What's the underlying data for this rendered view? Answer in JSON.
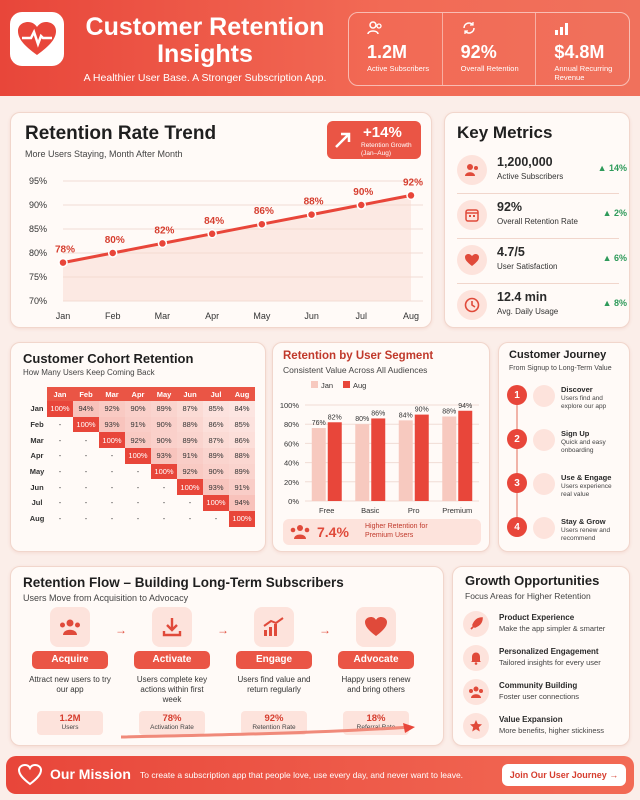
{
  "header": {
    "title": "Customer Retention Insights",
    "subtitle": "A Healthier User Base. A Stronger Subscription App.",
    "stats": [
      {
        "icon": "users-icon",
        "value": "1.2M",
        "label": "Active Subscribers"
      },
      {
        "icon": "refresh-icon",
        "value": "92%",
        "label": "Overall Retention"
      },
      {
        "icon": "bar-chart-icon",
        "value": "$4.8M",
        "label": "Annual Recurring Revenue"
      }
    ]
  },
  "trend": {
    "title": "Retention Rate Trend",
    "subtitle": "More Users Staying, Month After Month",
    "badge_value": "+14%",
    "badge_label": "Retention Growth (Jan–Aug)"
  },
  "chart_data": [
    {
      "type": "line",
      "title": "Retention Rate Trend",
      "x": [
        "Jan",
        "Feb",
        "Mar",
        "Apr",
        "May",
        "Jun",
        "Jul",
        "Aug"
      ],
      "series": [
        {
          "values": [
            78,
            80,
            82,
            84,
            86,
            88,
            90,
            92
          ]
        }
      ],
      "data_labels": [
        "78%",
        "80%",
        "82%",
        "84%",
        "86%",
        "88%",
        "90%",
        "92%"
      ],
      "yticks": [
        "70%",
        "75%",
        "80%",
        "85%",
        "90%",
        "95%"
      ],
      "ylim": [
        70,
        95
      ],
      "grid": true
    },
    {
      "type": "bar",
      "title": "Retention by User Segment",
      "categories": [
        "Free",
        "Basic",
        "Pro",
        "Premium"
      ],
      "series": [
        {
          "name": "Jan",
          "values": [
            76,
            80,
            84,
            88
          ]
        },
        {
          "name": "Aug",
          "values": [
            82,
            86,
            90,
            94
          ]
        }
      ],
      "yticks": [
        "0%",
        "20%",
        "40%",
        "60%",
        "80%",
        "100%"
      ],
      "ylim": [
        0,
        100
      ],
      "legend": "top-left"
    },
    {
      "type": "heatmap",
      "title": "Customer Cohort Retention",
      "columns": [
        "Jan",
        "Feb",
        "Mar",
        "Apr",
        "May",
        "Jun",
        "Jul",
        "Aug"
      ],
      "rows": [
        {
          "label": "Jan",
          "cells": [
            "100%",
            "94%",
            "92%",
            "90%",
            "89%",
            "87%",
            "85%",
            "84%"
          ]
        },
        {
          "label": "Feb",
          "cells": [
            "-",
            "100%",
            "93%",
            "91%",
            "90%",
            "88%",
            "86%",
            "85%"
          ]
        },
        {
          "label": "Mar",
          "cells": [
            "-",
            "-",
            "100%",
            "92%",
            "90%",
            "89%",
            "87%",
            "86%"
          ]
        },
        {
          "label": "Apr",
          "cells": [
            "-",
            "-",
            "-",
            "100%",
            "93%",
            "91%",
            "89%",
            "88%"
          ]
        },
        {
          "label": "May",
          "cells": [
            "-",
            "-",
            "-",
            "-",
            "100%",
            "92%",
            "90%",
            "89%"
          ]
        },
        {
          "label": "Jun",
          "cells": [
            "-",
            "-",
            "-",
            "-",
            "-",
            "100%",
            "93%",
            "91%"
          ]
        },
        {
          "label": "Jul",
          "cells": [
            "-",
            "-",
            "-",
            "-",
            "-",
            "-",
            "100%",
            "94%"
          ]
        },
        {
          "label": "Aug",
          "cells": [
            "-",
            "-",
            "-",
            "-",
            "-",
            "-",
            "-",
            "100%"
          ]
        }
      ]
    }
  ],
  "key_metrics": {
    "title": "Key Metrics",
    "items": [
      {
        "icon": "users-icon",
        "value": "1,200,000",
        "label": "Active Subscribers",
        "delta": "▲ 14%"
      },
      {
        "icon": "calendar-icon",
        "value": "92%",
        "label": "Overall Retention Rate",
        "delta": "▲ 2%"
      },
      {
        "icon": "heart-icon",
        "value": "4.7/5",
        "label": "User Satisfaction",
        "delta": "▲ 6%"
      },
      {
        "icon": "clock-icon",
        "value": "12.4 min",
        "label": "Avg. Daily Usage",
        "delta": "▲ 8%"
      }
    ]
  },
  "cohort": {
    "title": "Customer Cohort Retention",
    "subtitle": "How Many Users Keep Coming Back"
  },
  "segment": {
    "title": "Retention by User Segment",
    "subtitle": "Consistent Value Across All Audiences",
    "legend": [
      "Jan",
      "Aug"
    ],
    "bar_labels_jan": [
      "76%",
      "80%",
      "84%",
      "88%"
    ],
    "bar_labels_aug": [
      "82%",
      "86%",
      "90%",
      "94%"
    ],
    "callout_value": "7.4%",
    "callout_text": "Higher Retention for Premium Users"
  },
  "journey": {
    "title": "Customer Journey",
    "subtitle": "From Signup to Long-Term Value",
    "steps": [
      {
        "num": "1",
        "title": "Discover",
        "desc": "Users find and explore our app"
      },
      {
        "num": "2",
        "title": "Sign Up",
        "desc": "Quick and easy onboarding"
      },
      {
        "num": "3",
        "title": "Use & Engage",
        "desc": "Users experience real value"
      },
      {
        "num": "4",
        "title": "Stay & Grow",
        "desc": "Users renew and recommend"
      }
    ]
  },
  "flow": {
    "title": "Retention Flow – Building Long-Term Subscribers",
    "subtitle": "Users Move from Acquisition to Advocacy",
    "steps": [
      {
        "icon": "users-icon",
        "label": "Acquire",
        "desc": "Attract new users to try our app",
        "metric": "1.2M",
        "metric_label": "Users"
      },
      {
        "icon": "download-icon",
        "label": "Activate",
        "desc": "Users complete key actions within first week",
        "metric": "78%",
        "metric_label": "Activation Rate"
      },
      {
        "icon": "growth-chart-icon",
        "label": "Engage",
        "desc": "Users find value and return regularly",
        "metric": "92%",
        "metric_label": "Retention Rate"
      },
      {
        "icon": "heart-icon",
        "label": "Advocate",
        "desc": "Happy users renew and bring others",
        "metric": "18%",
        "metric_label": "Referral Rate"
      }
    ]
  },
  "growth": {
    "title": "Growth Opportunities",
    "subtitle": "Focus Areas for Higher Retention",
    "items": [
      {
        "icon": "rocket-icon",
        "title": "Product Experience",
        "desc": "Make the app simpler & smarter"
      },
      {
        "icon": "bell-icon",
        "title": "Personalized Engagement",
        "desc": "Tailored insights for every user"
      },
      {
        "icon": "community-icon",
        "title": "Community Building",
        "desc": "Foster user connections"
      },
      {
        "icon": "star-icon",
        "title": "Value Expansion",
        "desc": "More benefits, higher stickiness"
      }
    ]
  },
  "mission": {
    "title": "Our Mission",
    "text": "To create a subscription app that people love, use every day, and never want to leave.",
    "button": "Join Our User Journey →"
  },
  "colors": {
    "accent": "#e8463a",
    "accent_light": "#fde3dc",
    "positive": "#2e9a5a"
  }
}
